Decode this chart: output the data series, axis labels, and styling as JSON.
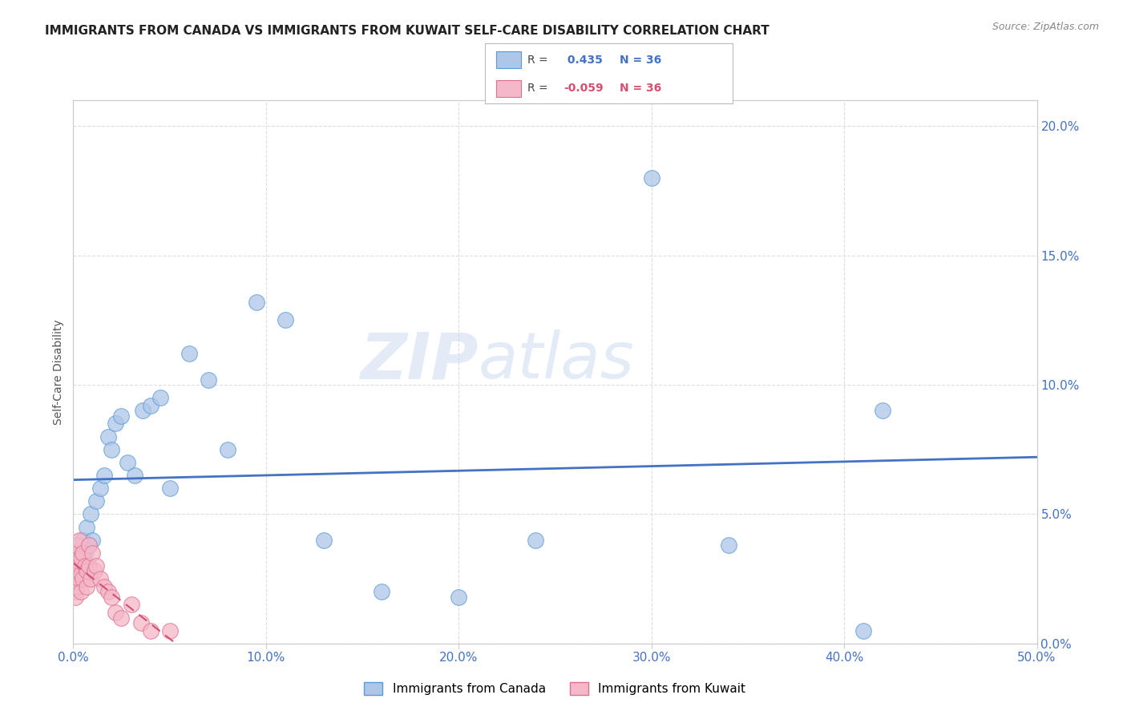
{
  "title": "IMMIGRANTS FROM CANADA VS IMMIGRANTS FROM KUWAIT SELF-CARE DISABILITY CORRELATION CHART",
  "source": "Source: ZipAtlas.com",
  "ylabel": "Self-Care Disability",
  "xlim": [
    0.0,
    0.5
  ],
  "ylim": [
    0.0,
    0.21
  ],
  "xticks": [
    0.0,
    0.1,
    0.2,
    0.3,
    0.4,
    0.5
  ],
  "xticklabels": [
    "0.0%",
    "10.0%",
    "20.0%",
    "30.0%",
    "40.0%",
    "50.0%"
  ],
  "yticks_right": [
    0.0,
    0.05,
    0.1,
    0.15,
    0.2
  ],
  "yticklabels_right": [
    "0.0%",
    "5.0%",
    "10.0%",
    "15.0%",
    "20.0%"
  ],
  "canada_R": 0.435,
  "canada_N": 36,
  "kuwait_R": -0.059,
  "kuwait_N": 36,
  "canada_color": "#aec6e8",
  "canada_edge_color": "#5b9bd5",
  "canada_line_color": "#4472c4",
  "kuwait_color": "#f4b8c8",
  "kuwait_edge_color": "#e07090",
  "kuwait_line_color": "#d45070",
  "watermark": "ZIPatlas",
  "canada_x": [
    0.001,
    0.002,
    0.003,
    0.004,
    0.005,
    0.006,
    0.007,
    0.008,
    0.009,
    0.01,
    0.012,
    0.014,
    0.016,
    0.018,
    0.02,
    0.022,
    0.025,
    0.028,
    0.032,
    0.036,
    0.04,
    0.045,
    0.05,
    0.06,
    0.07,
    0.08,
    0.095,
    0.11,
    0.13,
    0.16,
    0.2,
    0.24,
    0.3,
    0.34,
    0.41,
    0.42
  ],
  "canada_y": [
    0.03,
    0.035,
    0.028,
    0.032,
    0.04,
    0.035,
    0.045,
    0.038,
    0.05,
    0.04,
    0.055,
    0.06,
    0.065,
    0.08,
    0.075,
    0.085,
    0.088,
    0.07,
    0.065,
    0.09,
    0.092,
    0.095,
    0.06,
    0.112,
    0.102,
    0.075,
    0.132,
    0.125,
    0.04,
    0.02,
    0.018,
    0.04,
    0.18,
    0.038,
    0.005,
    0.09
  ],
  "kuwait_x": [
    0.001,
    0.001,
    0.001,
    0.001,
    0.001,
    0.002,
    0.002,
    0.002,
    0.002,
    0.003,
    0.003,
    0.003,
    0.004,
    0.004,
    0.004,
    0.005,
    0.005,
    0.006,
    0.007,
    0.007,
    0.008,
    0.008,
    0.009,
    0.01,
    0.011,
    0.012,
    0.014,
    0.016,
    0.018,
    0.02,
    0.022,
    0.025,
    0.03,
    0.035,
    0.04,
    0.05
  ],
  "kuwait_y": [
    0.03,
    0.025,
    0.02,
    0.035,
    0.018,
    0.028,
    0.032,
    0.022,
    0.038,
    0.03,
    0.025,
    0.04,
    0.033,
    0.027,
    0.02,
    0.035,
    0.025,
    0.03,
    0.028,
    0.022,
    0.038,
    0.03,
    0.025,
    0.035,
    0.028,
    0.03,
    0.025,
    0.022,
    0.02,
    0.018,
    0.012,
    0.01,
    0.015,
    0.008,
    0.005,
    0.005
  ],
  "title_color": "#222222",
  "source_color": "#888888",
  "axis_color": "#4472c4",
  "grid_color": "#dddddd"
}
